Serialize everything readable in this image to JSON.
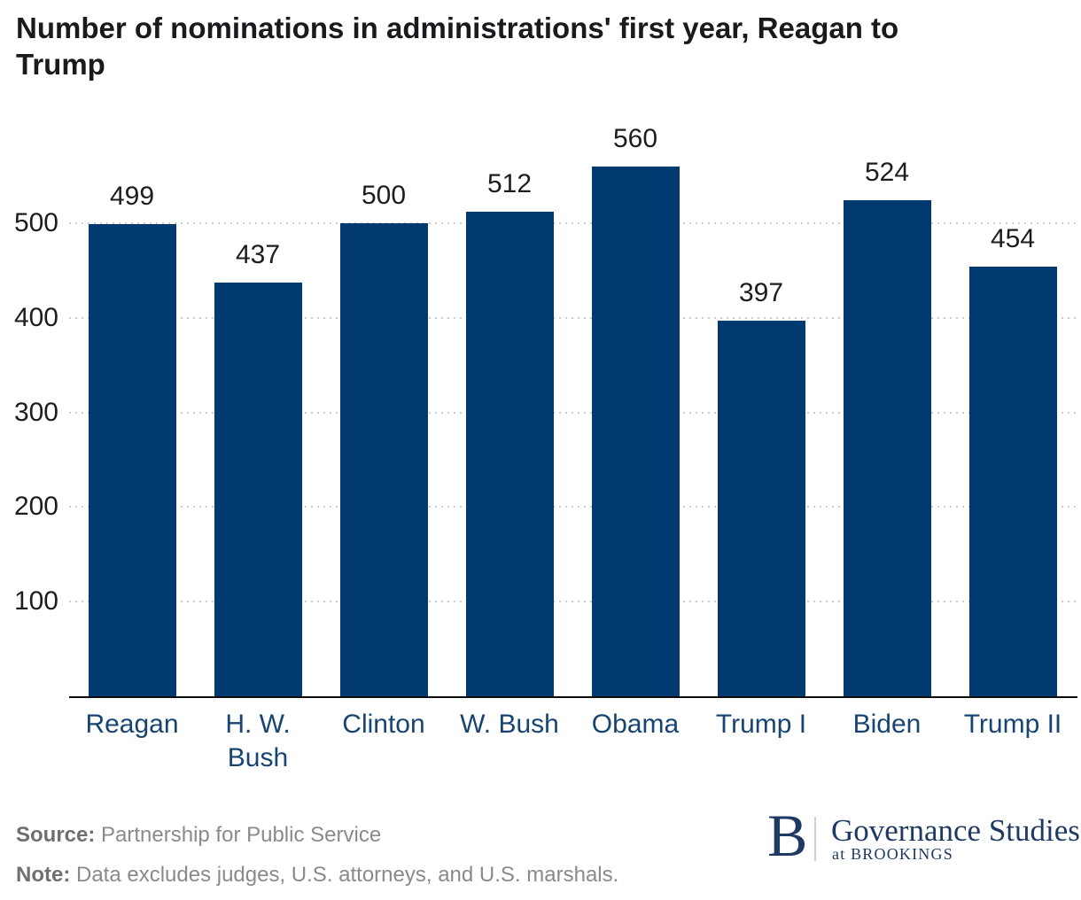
{
  "chart_data": {
    "type": "bar",
    "title": "Number of nominations in administrations' first year, Reagan to Trump",
    "categories": [
      "Reagan",
      "H. W. Bush",
      "Clinton",
      "W. Bush",
      "Obama",
      "Trump I",
      "Biden",
      "Trump II"
    ],
    "xtick_display": [
      "Reagan",
      "H. W.\nBush",
      "Clinton",
      "W. Bush",
      "Obama",
      "Trump I",
      "Biden",
      "Trump II"
    ],
    "values": [
      499,
      437,
      500,
      512,
      560,
      397,
      524,
      454
    ],
    "yticks": [
      100,
      200,
      300,
      400,
      500
    ],
    "ylim": [
      0,
      600
    ],
    "xlabel": "",
    "ylabel": "",
    "grid": "horizontal dotted",
    "legend": "none",
    "value_labels": true,
    "bar_color": "#003A70"
  },
  "colors": {
    "bar": "#003A70",
    "xtick_text": "#174472",
    "axis_text": "#1d1d1f",
    "gridline": "#cbcbcb",
    "footer_text": "#8a8a8a",
    "brand_navy": "#1e3a63"
  },
  "footer": {
    "source_label": "Source:",
    "source_text": " Partnership for Public Service",
    "note_label": "Note:",
    "note_text": " Data excludes judges, U.S. attorneys, and U.S. marshals."
  },
  "branding": {
    "monogram": "B",
    "name": "Governance Studies",
    "sub": "at BROOKINGS"
  }
}
